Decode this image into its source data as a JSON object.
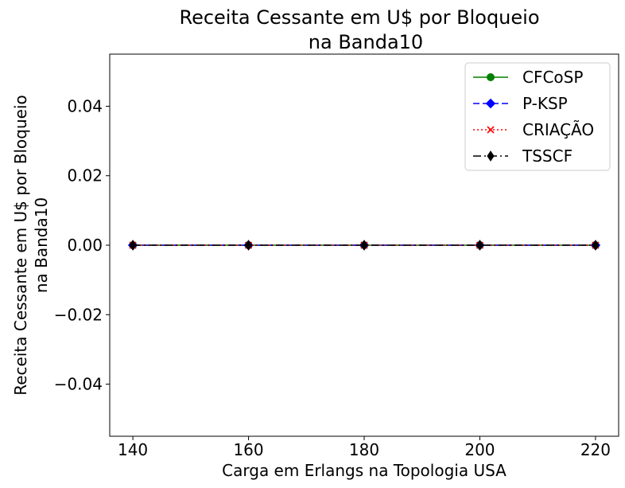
{
  "chart_data": {
    "type": "line",
    "title": [
      "Receita Cessante em U$ por Bloqueio",
      "na Banda10"
    ],
    "xlabel": "Carga em Erlangs na Topologia USA",
    "ylabel": [
      "Receita Cessante em U$ por Bloqueio",
      "na Banda10"
    ],
    "x": [
      140,
      160,
      180,
      200,
      220
    ],
    "xticks": [
      140,
      160,
      180,
      200,
      220
    ],
    "xtick_labels": [
      "140",
      "160",
      "180",
      "200",
      "220"
    ],
    "yticks": [
      -0.04,
      -0.02,
      0.0,
      0.02,
      0.04
    ],
    "ytick_labels": [
      "−0.04",
      "−0.02",
      "0.00",
      "0.02",
      "0.04"
    ],
    "xlim": [
      136,
      224
    ],
    "ylim": [
      -0.055,
      0.055
    ],
    "grid": false,
    "legend_position": "top-right",
    "series": [
      {
        "name": "CFCoSP",
        "values": [
          0,
          0,
          0,
          0,
          0
        ],
        "color": "#008000",
        "marker": "circle",
        "linestyle": "solid"
      },
      {
        "name": "P-KSP",
        "values": [
          0,
          0,
          0,
          0,
          0
        ],
        "color": "#0000ff",
        "marker": "diamond",
        "linestyle": "dashed"
      },
      {
        "name": "CRIAÇÃO",
        "values": [
          0,
          0,
          0,
          0,
          0
        ],
        "color": "#ff0000",
        "marker": "x",
        "linestyle": "dotted"
      },
      {
        "name": "TSSCF",
        "values": [
          0,
          0,
          0,
          0,
          0
        ],
        "color": "#000000",
        "marker": "thin-diamond",
        "linestyle": "dashdot"
      }
    ]
  }
}
